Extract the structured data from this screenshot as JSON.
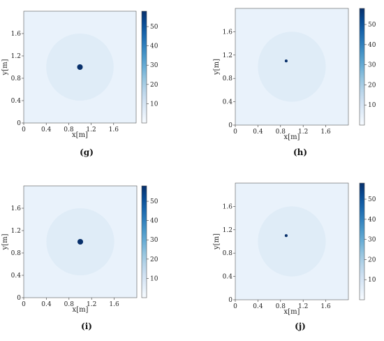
{
  "chart_data": [
    {
      "type": "heatmap",
      "caption": "(g)",
      "xlabel": "x[m]",
      "ylabel": "y[m]",
      "xlim": [
        0,
        2.0
      ],
      "ylim": [
        0,
        2.0
      ],
      "x_ticks": [
        "0",
        "0.4",
        "0.8",
        "1.2",
        "1.6"
      ],
      "y_ticks": [
        "0",
        "0.4",
        "0.8",
        "1.2",
        "1.6"
      ],
      "colorbar": {
        "range": [
          0,
          58
        ],
        "ticks": [
          "10",
          "20",
          "30",
          "40",
          "50"
        ],
        "colormap": "Blues"
      },
      "background_value": 4,
      "region": {
        "shape": "circle",
        "center": [
          1.0,
          1.0
        ],
        "radius": 0.6,
        "value": 7
      },
      "source": {
        "center": [
          1.0,
          1.0
        ],
        "radius": 0.05,
        "value": 58
      }
    },
    {
      "type": "heatmap",
      "caption": "(h)",
      "xlabel": "x[m]",
      "ylabel": "y[m]",
      "xlim": [
        0,
        2.0
      ],
      "ylim": [
        0,
        2.0
      ],
      "x_ticks": [
        "0",
        "0.4",
        "0.8",
        "1.2",
        "1.6"
      ],
      "y_ticks": [
        "0",
        "0.4",
        "0.8",
        "1.2",
        "1.6"
      ],
      "colorbar": {
        "range": [
          0,
          58
        ],
        "ticks": [
          "10",
          "20",
          "30",
          "40",
          "50"
        ],
        "colormap": "Blues"
      },
      "background_value": 4,
      "region": {
        "shape": "circle",
        "center": [
          1.0,
          1.0
        ],
        "radius": 0.6,
        "value": 7
      },
      "source": {
        "center": [
          0.9,
          1.1
        ],
        "radius": 0.025,
        "value": 58
      }
    },
    {
      "type": "heatmap",
      "caption": "(i)",
      "xlabel": "x[m]",
      "ylabel": "y[m]",
      "xlim": [
        0,
        2.0
      ],
      "ylim": [
        0,
        2.0
      ],
      "x_ticks": [
        "0",
        "0.4",
        "0.8",
        "1.2",
        "1.6"
      ],
      "y_ticks": [
        "0",
        "0.4",
        "0.8",
        "1.2",
        "1.6"
      ],
      "colorbar": {
        "range": [
          0,
          58
        ],
        "ticks": [
          "10",
          "20",
          "30",
          "40",
          "50"
        ],
        "colormap": "Blues"
      },
      "background_value": 4,
      "region": {
        "shape": "circle",
        "center": [
          1.0,
          1.0
        ],
        "radius": 0.6,
        "value": 7
      },
      "source": {
        "center": [
          1.0,
          1.0
        ],
        "radius": 0.05,
        "value": 58
      }
    },
    {
      "type": "heatmap",
      "caption": "(j)",
      "xlabel": "x[m]",
      "ylabel": "y[m]",
      "xlim": [
        0,
        2.0
      ],
      "ylim": [
        0,
        2.0
      ],
      "x_ticks": [
        "0",
        "0.4",
        "0.8",
        "1.2",
        "1.6"
      ],
      "y_ticks": [
        "0",
        "0.4",
        "0.8",
        "1.2",
        "1.6"
      ],
      "colorbar": {
        "range": [
          0,
          58
        ],
        "ticks": [
          "10",
          "20",
          "30",
          "40",
          "50"
        ],
        "colormap": "Blues"
      },
      "background_value": 4,
      "region": {
        "shape": "circle",
        "center": [
          1.0,
          1.0
        ],
        "radius": 0.6,
        "value": 7
      },
      "source": {
        "center": [
          0.9,
          1.1
        ],
        "radius": 0.025,
        "value": 58
      }
    }
  ]
}
